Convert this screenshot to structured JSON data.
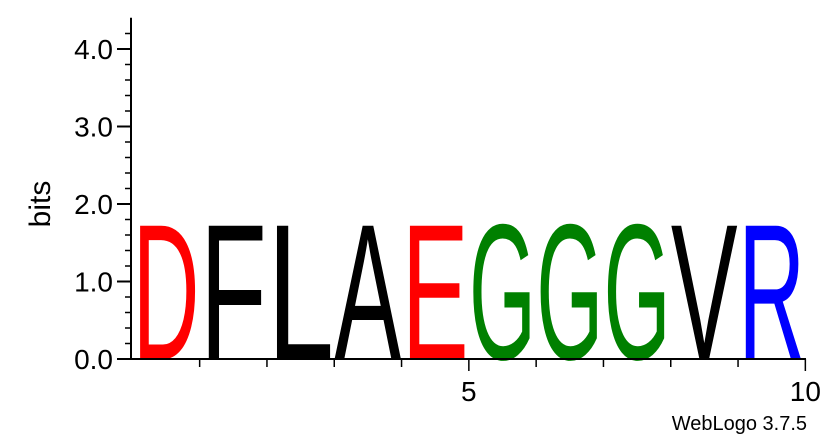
{
  "chart_data": {
    "type": "sequence-logo",
    "ylabel": "bits",
    "ylim": [
      0,
      4.3
    ],
    "y_ticks": [
      {
        "value": 0.0,
        "label": "0.0"
      },
      {
        "value": 1.0,
        "label": "1.0"
      },
      {
        "value": 2.0,
        "label": "2.0"
      },
      {
        "value": 3.0,
        "label": "3.0"
      },
      {
        "value": 4.0,
        "label": "4.0"
      }
    ],
    "x_tick_labels": [
      {
        "position": 5,
        "label": "5"
      },
      {
        "position": 10,
        "label": "10"
      }
    ],
    "positions": [
      {
        "position": 1,
        "residue": "D",
        "bits": 1.8,
        "color": "#ff0000"
      },
      {
        "position": 2,
        "residue": "F",
        "bits": 1.8,
        "color": "#000000"
      },
      {
        "position": 3,
        "residue": "L",
        "bits": 1.8,
        "color": "#000000"
      },
      {
        "position": 4,
        "residue": "A",
        "bits": 1.8,
        "color": "#000000"
      },
      {
        "position": 5,
        "residue": "E",
        "bits": 1.8,
        "color": "#ff0000"
      },
      {
        "position": 6,
        "residue": "G",
        "bits": 1.8,
        "color": "#008000"
      },
      {
        "position": 7,
        "residue": "G",
        "bits": 1.8,
        "color": "#008000"
      },
      {
        "position": 8,
        "residue": "G",
        "bits": 1.8,
        "color": "#008000"
      },
      {
        "position": 9,
        "residue": "V",
        "bits": 1.8,
        "color": "#000000"
      },
      {
        "position": 10,
        "residue": "R",
        "bits": 1.8,
        "color": "#0000ff"
      }
    ]
  },
  "credit": "WebLogo 3.7.5"
}
